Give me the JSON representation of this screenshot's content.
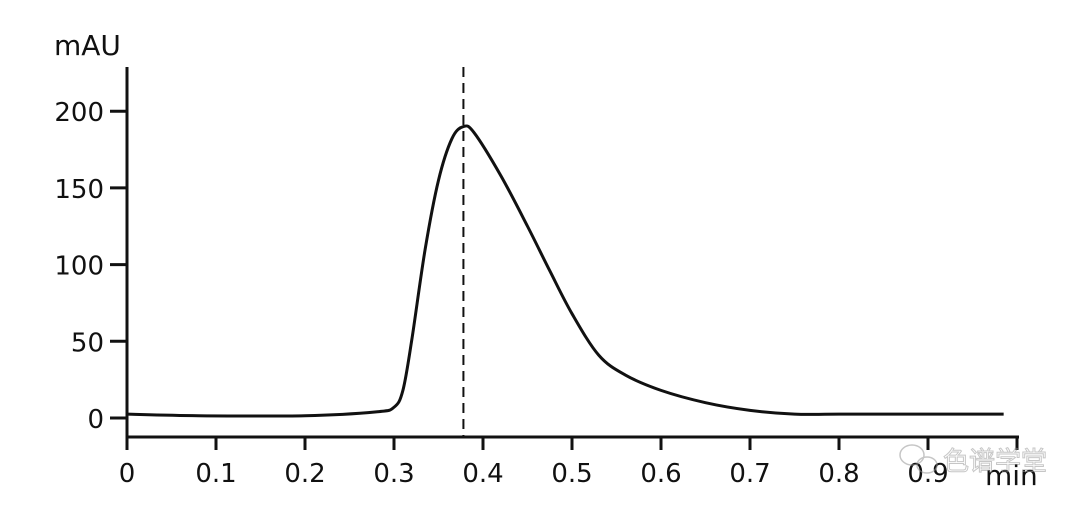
{
  "chart_data": {
    "type": "line",
    "title": "",
    "xlabel": "min",
    "ylabel": "mAU",
    "xlim": [
      0,
      1.0
    ],
    "ylim": [
      0,
      200
    ],
    "x_ticks": [
      "0",
      "0.1",
      "0.2",
      "0.3",
      "0.4",
      "0.5",
      "0.6",
      "0.7",
      "0.8",
      "0.9"
    ],
    "y_ticks": [
      "0",
      "50",
      "100",
      "150",
      "200"
    ],
    "grid": false,
    "line_color": "#111111",
    "peak_marker": {
      "x": 0.378,
      "style": "dashed vertical line"
    },
    "series": [
      {
        "x": [
          0,
          0.08,
          0.2,
          0.28,
          0.3,
          0.31,
          0.32,
          0.335,
          0.35,
          0.365,
          0.378,
          0.39,
          0.42,
          0.45,
          0.475,
          0.5,
          0.53,
          0.56,
          0.6,
          0.65,
          0.7,
          0.75,
          0.8,
          0.9,
          0.985
        ],
        "y": [
          2.5,
          1.5,
          1.5,
          4,
          7,
          18,
          51,
          110,
          155,
          182,
          190,
          186,
          158,
          125,
          96,
          68,
          41,
          28,
          18,
          10,
          5,
          2.5,
          2.5,
          2.5,
          2.5
        ]
      }
    ]
  },
  "watermark": "色谱学堂"
}
